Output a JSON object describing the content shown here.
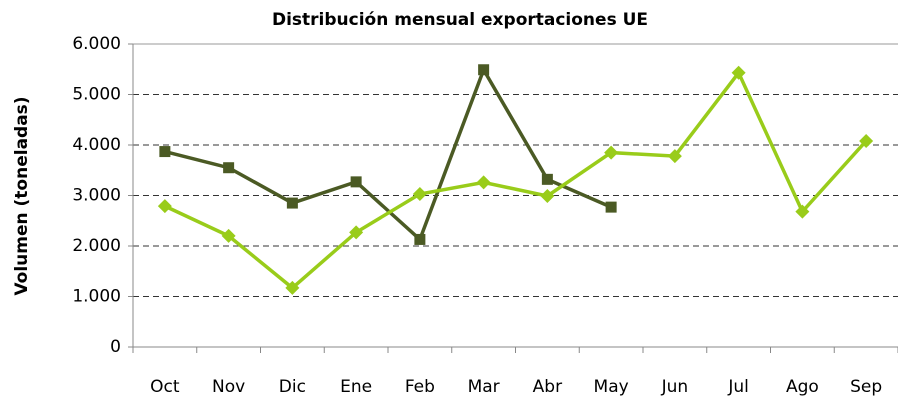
{
  "chart_data": {
    "type": "line",
    "title": "Distribución mensual exportaciones UE",
    "y_label": "Volumen (toneladas)",
    "categories": [
      "Oct",
      "Nov",
      "Dic",
      "Ene",
      "Feb",
      "Mar",
      "Abr",
      "May",
      "Jun",
      "Jul",
      "Ago",
      "Sep"
    ],
    "series": [
      {
        "color": "#4b5a24",
        "marker": "square",
        "values": [
          3870,
          3550,
          2850,
          3270,
          2130,
          5490,
          3320,
          2770,
          null,
          null,
          null,
          null
        ]
      },
      {
        "color": "#99cc1a",
        "marker": "diamond",
        "values": [
          2790,
          2200,
          1170,
          2270,
          3030,
          3260,
          2990,
          3850,
          3780,
          5430,
          2680,
          4080
        ]
      }
    ],
    "ylim": [
      0,
      6000
    ],
    "yticks": [
      0,
      {
        "value": 1000,
        "label": "1.000"
      },
      {
        "value": 2000,
        "label": "2.000"
      },
      {
        "value": 3000,
        "label": "3.000"
      },
      {
        "value": 4000,
        "label": "4.000"
      },
      {
        "value": 5000,
        "label": "5.000"
      },
      {
        "value": 6000,
        "label": "6.000"
      }
    ],
    "grid": true
  }
}
